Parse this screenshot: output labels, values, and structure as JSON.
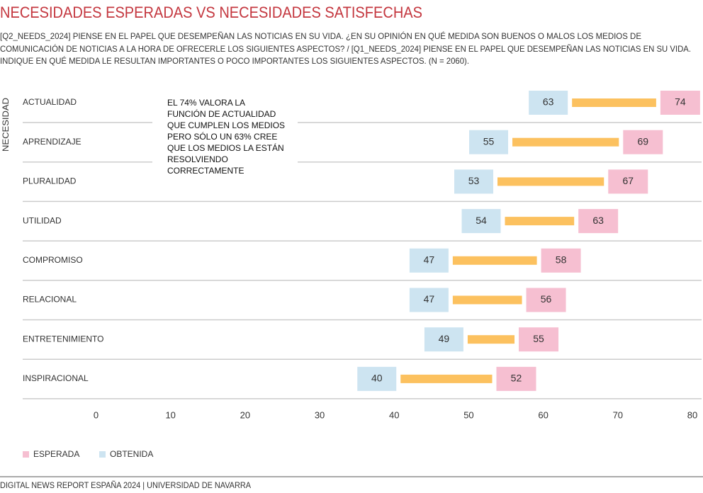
{
  "chart_data": {
    "type": "dumbbell",
    "title": "NECESIDADES ESPERADAS VS NECESIDADES SATISFECHAS",
    "subtitle": [
      "[Q2_NEEDS_2024] PIENSE EN EL PAPEL QUE DESEMPEÑAN LAS NOTICIAS EN SU VIDA. ¿EN SU OPINIÓN EN QUÉ MEDIDA SON BUENOS O MALOS LOS MEDIOS DE",
      "COMUNICACIÓN DE NOTICIAS A LA HORA DE OFRECERLE LOS SIGUIENTES ASPECTOS? / [Q1_NEEDS_2024] PIENSE EN EL PAPEL QUE DESEMPEÑAN LAS NOTICIAS EN SU VIDA.",
      "INDIQUE EN QUÉ MEDIDA LE RESULTAN IMPORTANTES O POCO IMPORTANTES LOS SIGUIENTES ASPECTOS. (N = 2060)."
    ],
    "y_label": "NECESIDAD",
    "annotation": [
      "EL 74% VALORA LA",
      "FUNCIÓN DE  ACTUALIDAD",
      "QUE CUMPLEN LOS MEDIOS",
      "PERO SÓLO UN 63% CREE",
      "QUE LOS MEDIOS LA ESTÁN",
      "RESOLVIENDO",
      "CORRECTAMENTE"
    ],
    "categories": [
      "ACTUALIDAD",
      "APRENDIZAJE",
      "PLURALIDAD",
      "UTILIDAD",
      "COMPROMISO",
      "RELACIONAL",
      "ENTRETENIMIENTO",
      "INSPIRACIONAL"
    ],
    "series": [
      {
        "name": "ESPERADA",
        "color": "#f6bfd1",
        "values": [
          74,
          69,
          67,
          63,
          58,
          56,
          55,
          52
        ]
      },
      {
        "name": "OBTENIDA",
        "color": "#cde4f1",
        "values": [
          63,
          55,
          53,
          54,
          47,
          47,
          49,
          40
        ]
      }
    ],
    "connector_color": "#fcc15f",
    "xlim": [
      0,
      80
    ],
    "xticks": [
      0,
      10,
      20,
      30,
      40,
      50,
      60,
      70,
      80
    ],
    "footer": "DIGITAL NEWS REPORT ESPAÑA 2024 | UNIVERSIDAD DE NAVARRA"
  }
}
